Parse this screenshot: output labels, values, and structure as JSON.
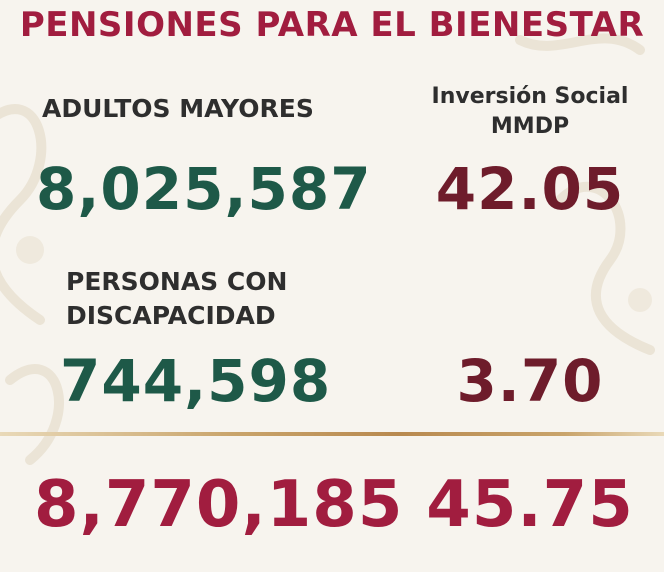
{
  "title": "PENSIONES PARA EL BIENESTAR",
  "investment_header": {
    "line1": "Inversión Social",
    "line2": "MMDP"
  },
  "rows": [
    {
      "label_lines": [
        "ADULTOS MAYORES"
      ],
      "beneficiaries": "8,025,587",
      "investment": "42.05"
    },
    {
      "label_lines": [
        "PERSONAS CON",
        "DISCAPACIDAD"
      ],
      "beneficiaries": "744,598",
      "investment": "3.70"
    }
  ],
  "total": {
    "beneficiaries": "8,770,185",
    "investment": "45.75"
  },
  "colors": {
    "title": "#a11d3f",
    "beneficiaries": "#1e5948",
    "investment": "#6e1c2b",
    "total": "#a11d3f",
    "divider": "#c9a46b"
  }
}
